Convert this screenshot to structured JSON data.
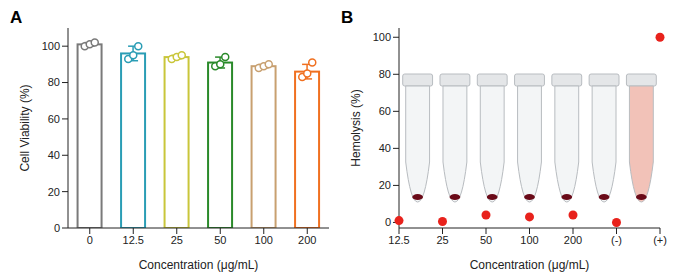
{
  "chart_data": [
    {
      "type": "bar",
      "title": "A",
      "x_label": "Concentration (μg/mL)",
      "y_label": "Cell Viability (%)",
      "categories": [
        "0",
        "12.5",
        "25",
        "50",
        "100",
        "200"
      ],
      "values": [
        101,
        96,
        94,
        91,
        89,
        86
      ],
      "error": [
        1,
        4,
        1,
        3,
        1,
        4
      ],
      "replicates": [
        [
          100,
          101,
          102
        ],
        [
          93,
          95,
          100
        ],
        [
          93,
          94,
          95
        ],
        [
          89,
          90,
          94
        ],
        [
          88,
          89,
          90
        ],
        [
          83,
          85,
          91
        ]
      ],
      "colors": [
        "#7a7a7a",
        "#2a9db5",
        "#c9c63a",
        "#2a8a2a",
        "#c8a070",
        "#f07020"
      ],
      "ylim": [
        0,
        110
      ],
      "yticks": [
        0,
        20,
        40,
        60,
        80,
        100
      ],
      "grid": false
    },
    {
      "type": "scatter",
      "title": "B",
      "x_label": "Concentration (μg/mL)",
      "y_label": "Hemolysis (%)",
      "categories": [
        "12.5",
        "25",
        "50",
        "100",
        "200",
        "(-)",
        "(+)"
      ],
      "values": [
        1,
        0.5,
        4,
        3,
        4,
        0,
        100
      ],
      "color": "#e8221c",
      "marker": "circle",
      "ylim": [
        -3,
        105
      ],
      "yticks": [
        0,
        20,
        40,
        60,
        80,
        100
      ],
      "grid": false
    }
  ]
}
